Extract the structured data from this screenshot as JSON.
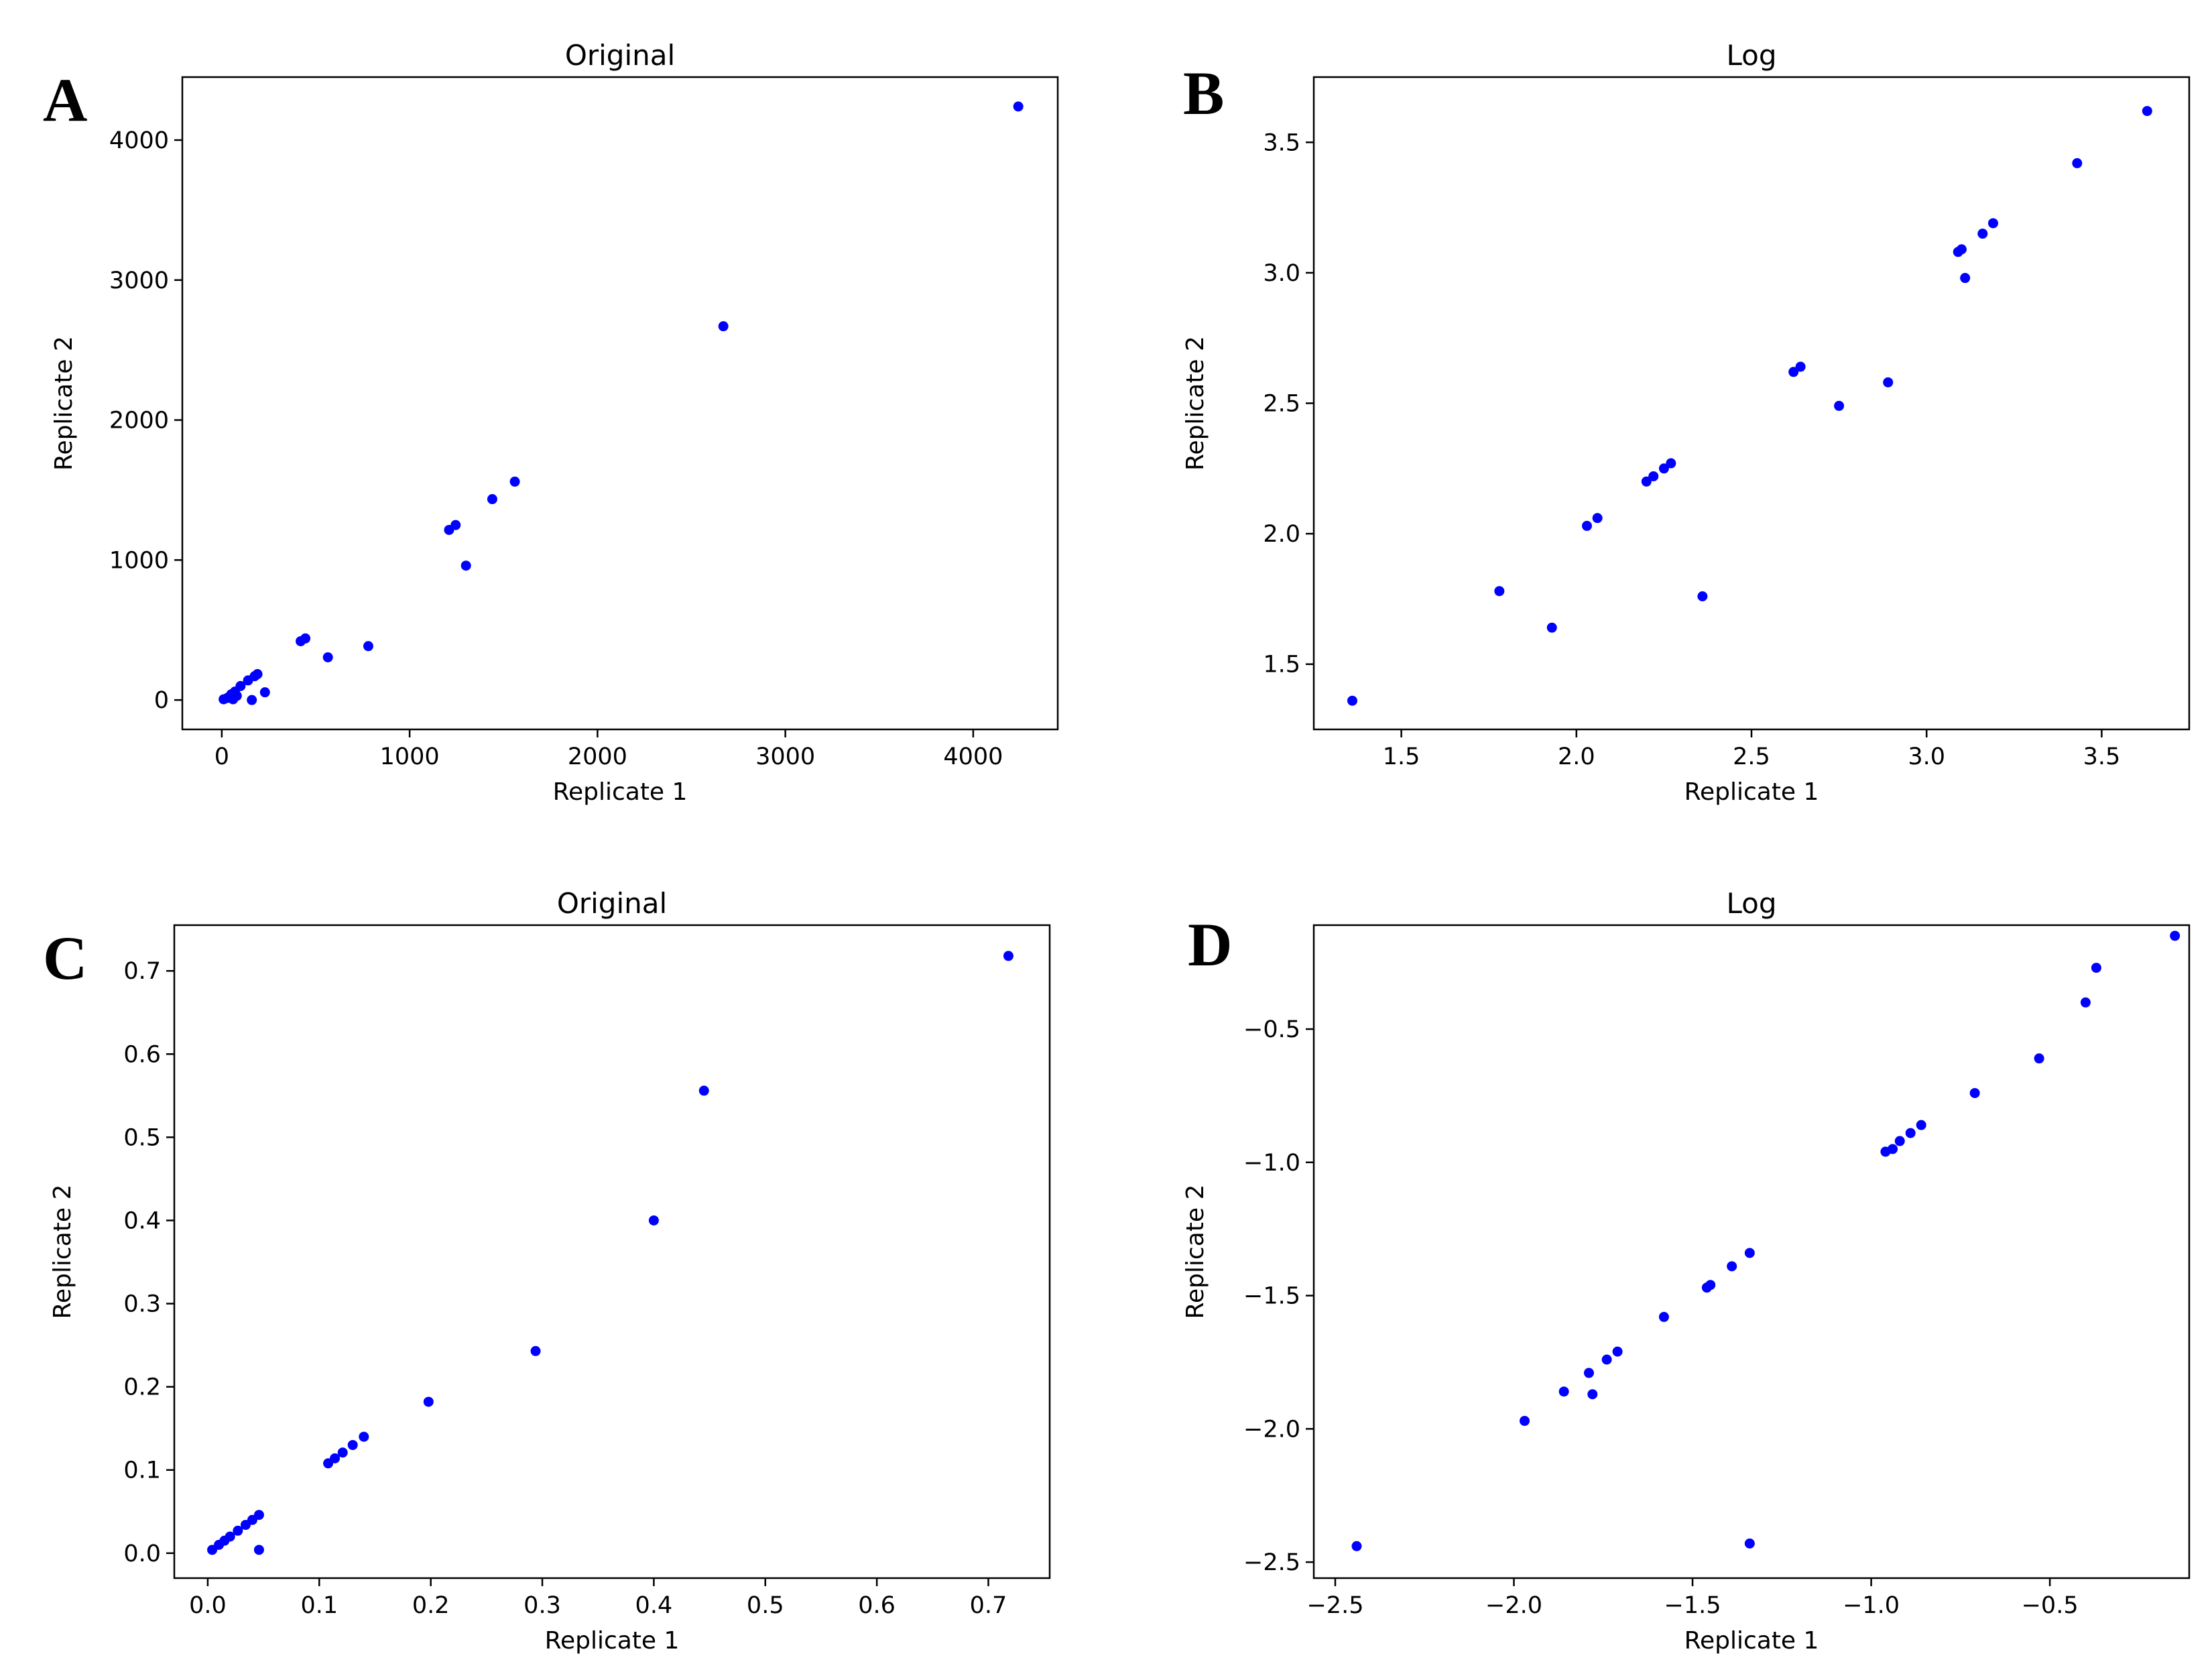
{
  "chart_data": [
    {
      "panel": "A",
      "type": "scatter",
      "title": "Original",
      "xlabel": "Replicate 1",
      "ylabel": "Replicate 2",
      "xlim": [
        -210,
        4450
      ],
      "ylim": [
        -210,
        4450
      ],
      "xticks": [
        0,
        1000,
        2000,
        3000,
        4000
      ],
      "yticks": [
        0,
        1000,
        2000,
        3000,
        4000
      ],
      "xticklabels": [
        "0",
        "1000",
        "2000",
        "3000",
        "4000"
      ],
      "yticklabels": [
        "0",
        "1000",
        "2000",
        "3000",
        "4000"
      ],
      "x": [
        10,
        30,
        50,
        60,
        70,
        80,
        100,
        140,
        160,
        175,
        190,
        230,
        420,
        445,
        565,
        780,
        1210,
        1245,
        1300,
        1440,
        1560,
        2670,
        4240
      ],
      "y": [
        5,
        15,
        40,
        5,
        60,
        30,
        100,
        140,
        0,
        170,
        185,
        55,
        420,
        440,
        305,
        385,
        1215,
        1250,
        960,
        1435,
        1560,
        2670,
        4240
      ],
      "color": "#0000ff"
    },
    {
      "panel": "B",
      "type": "scatter",
      "title": "Log",
      "xlabel": "Replicate 1",
      "ylabel": "Replicate 2",
      "xlim": [
        1.25,
        3.75
      ],
      "ylim": [
        1.25,
        3.75
      ],
      "xticks": [
        1.5,
        2.0,
        2.5,
        3.0,
        3.5
      ],
      "yticks": [
        1.5,
        2.0,
        2.5,
        3.0,
        3.5
      ],
      "xticklabels": [
        "1.5",
        "2.0",
        "2.5",
        "3.0",
        "3.5"
      ],
      "yticklabels": [
        "1.5",
        "2.0",
        "2.5",
        "3.0",
        "3.5"
      ],
      "x": [
        1.36,
        1.78,
        1.93,
        2.03,
        2.06,
        2.2,
        2.22,
        2.25,
        2.27,
        2.36,
        2.62,
        2.64,
        2.75,
        2.89,
        3.09,
        3.1,
        3.11,
        3.16,
        3.19,
        3.43,
        3.63
      ],
      "y": [
        1.36,
        1.78,
        1.64,
        2.03,
        2.06,
        2.2,
        2.22,
        2.25,
        2.27,
        1.76,
        2.62,
        2.64,
        2.49,
        2.58,
        3.08,
        3.09,
        2.98,
        3.15,
        3.19,
        3.42,
        3.62
      ],
      "color": "#0000ff"
    },
    {
      "panel": "C",
      "type": "scatter",
      "title": "Original",
      "xlabel": "Replicate 1",
      "ylabel": "Replicate 2",
      "xlim": [
        -0.03,
        0.755
      ],
      "ylim": [
        -0.03,
        0.755
      ],
      "xticks": [
        0.0,
        0.1,
        0.2,
        0.3,
        0.4,
        0.5,
        0.6,
        0.7
      ],
      "yticks": [
        0.0,
        0.1,
        0.2,
        0.3,
        0.4,
        0.5,
        0.6,
        0.7
      ],
      "xticklabels": [
        "0.0",
        "0.1",
        "0.2",
        "0.3",
        "0.4",
        "0.5",
        "0.6",
        "0.7"
      ],
      "yticklabels": [
        "0.0",
        "0.1",
        "0.2",
        "0.3",
        "0.4",
        "0.5",
        "0.6",
        "0.7"
      ],
      "x": [
        0.004,
        0.01,
        0.015,
        0.02,
        0.027,
        0.034,
        0.04,
        0.046,
        0.046,
        0.108,
        0.114,
        0.121,
        0.13,
        0.14,
        0.198,
        0.294,
        0.4,
        0.445,
        0.718
      ],
      "y": [
        0.004,
        0.01,
        0.015,
        0.02,
        0.027,
        0.034,
        0.04,
        0.046,
        0.004,
        0.108,
        0.114,
        0.121,
        0.13,
        0.14,
        0.182,
        0.243,
        0.4,
        0.556,
        0.718
      ],
      "color": "#0000ff"
    },
    {
      "panel": "D",
      "type": "scatter",
      "title": "Log",
      "xlabel": "Replicate 1",
      "ylabel": "Replicate 2",
      "xlim": [
        -2.56,
        -0.11
      ],
      "ylim": [
        -2.56,
        -0.11
      ],
      "xticks": [
        -2.5,
        -2.0,
        -1.5,
        -1.0,
        -0.5
      ],
      "yticks": [
        -2.5,
        -2.0,
        -1.5,
        -1.0,
        -0.5
      ],
      "xticklabels": [
        "−2.5",
        "−2.0",
        "−1.5",
        "−1.0",
        "−0.5"
      ],
      "yticklabels": [
        "−2.5",
        "−2.0",
        "−1.5",
        "−1.0",
        "−0.5"
      ],
      "x": [
        -2.44,
        -1.97,
        -1.86,
        -1.79,
        -1.78,
        -1.74,
        -1.71,
        -1.58,
        -1.46,
        -1.45,
        -1.39,
        -1.34,
        -1.34,
        -0.96,
        -0.94,
        -0.92,
        -0.89,
        -0.86,
        -0.71,
        -0.53,
        -0.4,
        -0.37,
        -0.15
      ],
      "y": [
        -2.44,
        -1.97,
        -1.86,
        -1.79,
        -1.87,
        -1.74,
        -1.71,
        -1.58,
        -1.47,
        -1.46,
        -1.39,
        -1.34,
        -2.43,
        -0.96,
        -0.95,
        -0.92,
        -0.89,
        -0.86,
        -0.74,
        -0.61,
        -0.4,
        -0.27,
        -0.15
      ],
      "color": "#0000ff"
    }
  ]
}
